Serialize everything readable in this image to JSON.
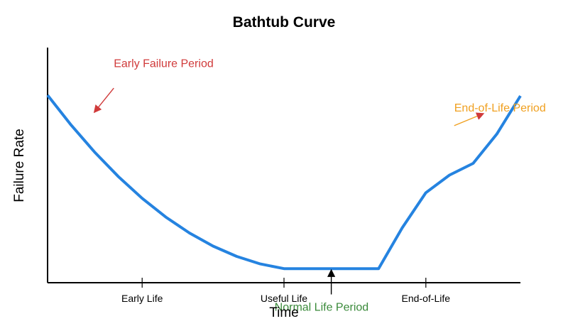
{
  "chart_data": {
    "type": "line",
    "title": "Bathtub Curve",
    "xlabel": "Time",
    "ylabel": "Failure Rate",
    "xlim": [
      0,
      10
    ],
    "ylim": [
      0,
      10
    ],
    "grid": false,
    "x_ticks": [
      {
        "value": 2,
        "label": "Early Life"
      },
      {
        "value": 5,
        "label": "Useful Life"
      },
      {
        "value": 8,
        "label": "End-of-Life"
      }
    ],
    "series": [
      {
        "color": "#2583e0",
        "x": [
          0,
          0.5,
          1,
          1.5,
          2,
          2.5,
          3,
          3.5,
          4,
          4.5,
          5,
          5.5,
          6,
          6.5,
          7,
          7.5,
          8,
          8.5,
          9,
          9.5,
          10
        ],
        "y": [
          8,
          6.72,
          5.56,
          4.52,
          3.6,
          2.8,
          2.12,
          1.56,
          1.12,
          0.8,
          0.6,
          0.6,
          0.6,
          0.6,
          0.6,
          2.34,
          3.84,
          4.59,
          5.09,
          6.34,
          7.97
        ]
      }
    ],
    "annotations": [
      {
        "text": "Early Failure Period",
        "color": "#d03a3a",
        "arrow_color": "#d03a3a",
        "x": 1.4,
        "y": 9.2,
        "arrow_from": [
          1.4,
          8.3
        ],
        "arrow_to": [
          1.0,
          7.3
        ]
      },
      {
        "text": "Normal Life Period",
        "color": "#3a8a3a",
        "arrow_color": "#000000",
        "x": 4.8,
        "y": -1.2,
        "arrow_from": [
          6.0,
          -0.5
        ],
        "arrow_to": [
          6.0,
          0.5
        ]
      },
      {
        "text": "End-of-Life Period",
        "color": "#f0a020",
        "arrow_color": "#f0a020",
        "x": 8.6,
        "y": 7.3,
        "arrow_from": [
          8.6,
          6.7
        ],
        "arrow_to": [
          9.2,
          7.2
        ]
      }
    ]
  }
}
